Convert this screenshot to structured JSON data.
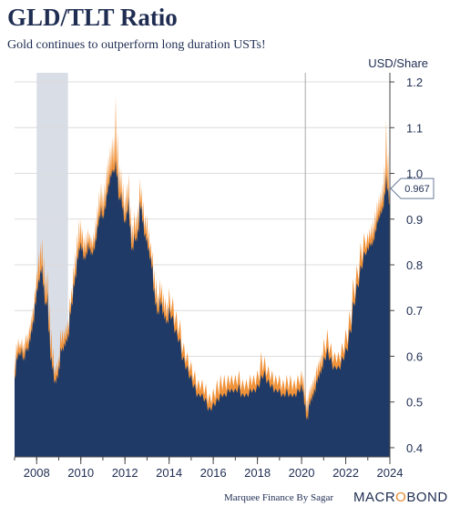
{
  "chart_data": {
    "type": "area",
    "title": "GLD/TLT Ratio",
    "subtitle": "Gold continues to outperform long duration USTs!",
    "ylabel": "USD/Share",
    "ylim": [
      0.38,
      1.22
    ],
    "xlim": [
      2007.0,
      2024.0
    ],
    "yticks": [
      0.4,
      0.5,
      0.6,
      0.7,
      0.8,
      0.9,
      1.0,
      1.1,
      1.2
    ],
    "yticklabels": [
      "0.4",
      "0.5",
      "0.6",
      "0.7",
      "0.8",
      "0.9",
      "1.0",
      "1.1",
      "1.2"
    ],
    "xticks": [
      2008,
      2010,
      2012,
      2014,
      2016,
      2018,
      2020,
      2022,
      2024
    ],
    "xticklabels": [
      "2008",
      "2010",
      "2012",
      "2014",
      "2016",
      "2018",
      "2020",
      "2022",
      "2024"
    ],
    "recession_shading": [
      2008.0,
      2009.42
    ],
    "event_line_x": 2020.17,
    "last_value": 0.967,
    "last_value_label": "0.967",
    "grid": true,
    "colors": {
      "area_fill": "#1f3a66",
      "high_edge": "#f0923a",
      "recession": "#d9dde6",
      "grid": "#dcdcdc",
      "text": "#1f2d52"
    },
    "series": [
      {
        "x": [
          2007.0,
          2007.08,
          2007.17,
          2007.25,
          2007.33,
          2007.42,
          2007.5,
          2007.58,
          2007.67,
          2007.75,
          2007.83,
          2007.92,
          2008.0,
          2008.08,
          2008.17,
          2008.25,
          2008.33,
          2008.42,
          2008.5,
          2008.58,
          2008.67,
          2008.75,
          2008.83,
          2008.92,
          2009.0,
          2009.08,
          2009.17,
          2009.25,
          2009.33,
          2009.42,
          2009.5,
          2009.58,
          2009.67,
          2009.75,
          2009.83,
          2009.92,
          2010.0,
          2010.08,
          2010.17,
          2010.25,
          2010.33,
          2010.42,
          2010.5,
          2010.58,
          2010.67,
          2010.75,
          2010.83,
          2010.92,
          2011.0,
          2011.08,
          2011.17,
          2011.25,
          2011.33,
          2011.42,
          2011.5,
          2011.58,
          2011.67,
          2011.75,
          2011.83,
          2011.92,
          2012.0,
          2012.08,
          2012.17,
          2012.25,
          2012.33,
          2012.42,
          2012.5,
          2012.58,
          2012.67,
          2012.75,
          2012.83,
          2012.92,
          2013.0,
          2013.08,
          2013.17,
          2013.25,
          2013.33,
          2013.42,
          2013.5,
          2013.58,
          2013.67,
          2013.75,
          2013.83,
          2013.92,
          2014.0,
          2014.17,
          2014.33,
          2014.5,
          2014.67,
          2014.83,
          2015.0,
          2015.17,
          2015.33,
          2015.5,
          2015.67,
          2015.83,
          2016.0,
          2016.17,
          2016.33,
          2016.5,
          2016.67,
          2016.83,
          2017.0,
          2017.17,
          2017.33,
          2017.5,
          2017.67,
          2017.83,
          2018.0,
          2018.17,
          2018.33,
          2018.5,
          2018.67,
          2018.83,
          2019.0,
          2019.17,
          2019.33,
          2019.5,
          2019.67,
          2019.83,
          2020.0,
          2020.08,
          2020.17,
          2020.25,
          2020.33,
          2020.42,
          2020.5,
          2020.58,
          2020.67,
          2020.75,
          2020.83,
          2020.92,
          2021.0,
          2021.17,
          2021.33,
          2021.5,
          2021.67,
          2021.83,
          2022.0,
          2022.17,
          2022.33,
          2022.5,
          2022.67,
          2022.83,
          2023.0,
          2023.08,
          2023.17,
          2023.25,
          2023.33,
          2023.42,
          2023.5,
          2023.58,
          2023.67,
          2023.75,
          2023.83,
          2023.92,
          2024.0
        ],
        "low": [
          0.56,
          0.6,
          0.61,
          0.61,
          0.62,
          0.6,
          0.62,
          0.62,
          0.64,
          0.66,
          0.68,
          0.72,
          0.75,
          0.77,
          0.79,
          0.8,
          0.76,
          0.72,
          0.74,
          0.66,
          0.6,
          0.58,
          0.55,
          0.56,
          0.58,
          0.62,
          0.62,
          0.63,
          0.64,
          0.65,
          0.7,
          0.72,
          0.76,
          0.78,
          0.82,
          0.84,
          0.85,
          0.84,
          0.82,
          0.83,
          0.85,
          0.84,
          0.83,
          0.84,
          0.86,
          0.89,
          0.91,
          0.93,
          0.91,
          0.93,
          0.96,
          0.98,
          1.0,
          1.01,
          1.01,
          1.03,
          1.0,
          0.95,
          0.96,
          0.93,
          0.9,
          0.92,
          0.95,
          0.89,
          0.84,
          0.87,
          0.86,
          0.88,
          0.94,
          0.93,
          0.9,
          0.87,
          0.86,
          0.84,
          0.82,
          0.8,
          0.75,
          0.72,
          0.7,
          0.73,
          0.72,
          0.7,
          0.69,
          0.68,
          0.71,
          0.69,
          0.66,
          0.64,
          0.6,
          0.58,
          0.56,
          0.54,
          0.52,
          0.52,
          0.51,
          0.49,
          0.5,
          0.51,
          0.52,
          0.52,
          0.53,
          0.53,
          0.53,
          0.54,
          0.52,
          0.52,
          0.53,
          0.53,
          0.54,
          0.56,
          0.57,
          0.55,
          0.54,
          0.53,
          0.53,
          0.52,
          0.53,
          0.52,
          0.52,
          0.53,
          0.54,
          0.53,
          0.5,
          0.47,
          0.5,
          0.51,
          0.52,
          0.53,
          0.55,
          0.56,
          0.57,
          0.58,
          0.6,
          0.62,
          0.6,
          0.58,
          0.58,
          0.6,
          0.62,
          0.66,
          0.72,
          0.76,
          0.8,
          0.83,
          0.84,
          0.85,
          0.85,
          0.86,
          0.88,
          0.9,
          0.91,
          0.92,
          0.93,
          0.96,
          1.0,
          0.97,
          0.94
        ],
        "high": [
          0.6,
          0.63,
          0.64,
          0.63,
          0.64,
          0.63,
          0.65,
          0.65,
          0.67,
          0.69,
          0.71,
          0.75,
          0.79,
          0.83,
          0.85,
          0.86,
          0.82,
          0.78,
          0.79,
          0.72,
          0.66,
          0.62,
          0.58,
          0.59,
          0.6,
          0.66,
          0.66,
          0.66,
          0.67,
          0.68,
          0.73,
          0.75,
          0.8,
          0.83,
          0.87,
          0.9,
          0.9,
          0.88,
          0.86,
          0.87,
          0.88,
          0.87,
          0.86,
          0.87,
          0.9,
          0.93,
          0.96,
          0.98,
          0.96,
          0.98,
          1.02,
          1.04,
          1.06,
          1.08,
          1.08,
          1.17,
          1.09,
          1.02,
          1.01,
          0.98,
          0.95,
          0.98,
          1.0,
          0.93,
          0.89,
          0.92,
          0.91,
          0.93,
          0.99,
          0.97,
          0.94,
          0.91,
          0.91,
          0.88,
          0.85,
          0.83,
          0.79,
          0.77,
          0.74,
          0.77,
          0.76,
          0.74,
          0.73,
          0.72,
          0.75,
          0.73,
          0.7,
          0.68,
          0.63,
          0.61,
          0.59,
          0.57,
          0.55,
          0.55,
          0.54,
          0.52,
          0.53,
          0.55,
          0.56,
          0.56,
          0.56,
          0.56,
          0.56,
          0.57,
          0.55,
          0.55,
          0.56,
          0.56,
          0.57,
          0.61,
          0.6,
          0.58,
          0.57,
          0.56,
          0.56,
          0.55,
          0.56,
          0.56,
          0.55,
          0.56,
          0.57,
          0.56,
          0.54,
          0.51,
          0.53,
          0.54,
          0.55,
          0.56,
          0.58,
          0.59,
          0.6,
          0.61,
          0.64,
          0.66,
          0.63,
          0.61,
          0.61,
          0.63,
          0.66,
          0.7,
          0.77,
          0.8,
          0.85,
          0.87,
          0.87,
          0.88,
          0.89,
          0.9,
          0.92,
          0.94,
          0.95,
          0.96,
          0.98,
          1.02,
          1.12,
          1.05,
          0.99
        ]
      }
    ]
  },
  "footer": {
    "credit": "Marquee Finance By Sagar",
    "brand_left": "MACR",
    "brand_o": "O",
    "brand_right": "BOND"
  }
}
